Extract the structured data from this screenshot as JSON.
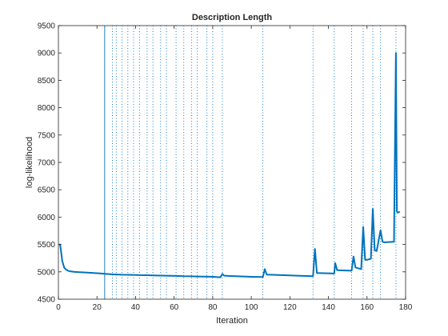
{
  "chart_data": {
    "type": "line",
    "title": "Description Length",
    "xlabel": "Iteration",
    "ylabel": "log-likelihood",
    "xlim": [
      0,
      180
    ],
    "ylim": [
      4500,
      9500
    ],
    "xticks": [
      0,
      20,
      40,
      60,
      80,
      100,
      120,
      140,
      160,
      180
    ],
    "yticks": [
      4500,
      5000,
      5500,
      6000,
      6500,
      7000,
      7500,
      8000,
      8500,
      9000,
      9500
    ],
    "grid": false,
    "line_color": "#0072BD",
    "solid_vline_x": [
      24
    ],
    "dotted_vlines_x": [
      28,
      30,
      33,
      36,
      39,
      42,
      46,
      49,
      53,
      56,
      61,
      65,
      69,
      72,
      77,
      80,
      85,
      106,
      132,
      143,
      152,
      158,
      163,
      167,
      175
    ],
    "series": [
      {
        "x": [
          0.5,
          1,
          2,
          3,
          4,
          5,
          6,
          8,
          10,
          15,
          20,
          24,
          28,
          30,
          33,
          36,
          39,
          42,
          46,
          49,
          53,
          56,
          61,
          65,
          69,
          72,
          77,
          80,
          84,
          85,
          86,
          88,
          100,
          106,
          107,
          108,
          120,
          132,
          133,
          134,
          143,
          143.5,
          144.5,
          152,
          153,
          154,
          157,
          158,
          159,
          160,
          162,
          163,
          164,
          165,
          167,
          168,
          169,
          174,
          175,
          175.5,
          176,
          177
        ],
        "y": [
          5510,
          5480,
          5200,
          5080,
          5040,
          5020,
          5010,
          5000,
          4995,
          4985,
          4975,
          4965,
          4955,
          4952,
          4948,
          4946,
          4944,
          4940,
          4938,
          4935,
          4932,
          4930,
          4925,
          4920,
          4918,
          4915,
          4912,
          4910,
          4900,
          4960,
          4930,
          4925,
          4910,
          4905,
          5050,
          4950,
          4935,
          4920,
          5420,
          4980,
          4970,
          5160,
          5030,
          5020,
          5280,
          5080,
          5050,
          5820,
          5220,
          5220,
          5240,
          6150,
          5390,
          5380,
          5760,
          5550,
          5540,
          5550,
          9000,
          6100,
          6080,
          6100
        ]
      }
    ]
  }
}
